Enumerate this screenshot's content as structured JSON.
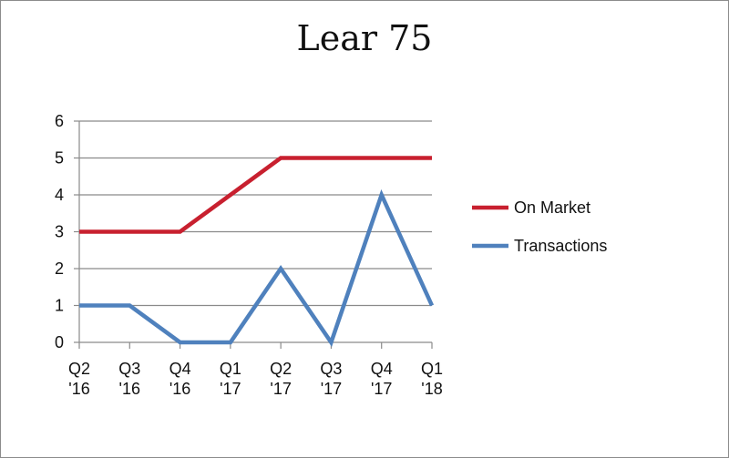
{
  "chart_data": {
    "type": "line",
    "title": "Lear 75",
    "categories": [
      [
        "Q2",
        "'16"
      ],
      [
        "Q3",
        "'16"
      ],
      [
        "Q4",
        "'16"
      ],
      [
        "Q1",
        "'17"
      ],
      [
        "Q2",
        "'17"
      ],
      [
        "Q3",
        "'17"
      ],
      [
        "Q4",
        "'17"
      ],
      [
        "Q1",
        "'18"
      ]
    ],
    "series": [
      {
        "name": "On Market",
        "color": "#c8202f",
        "values": [
          3,
          3,
          3,
          4,
          5,
          5,
          5,
          5
        ]
      },
      {
        "name": "Transactions",
        "color": "#4f81bd",
        "values": [
          1,
          1,
          0,
          0,
          2,
          0,
          4,
          1
        ]
      }
    ],
    "ylim": [
      0,
      6
    ],
    "yticks": [
      0,
      1,
      2,
      3,
      4,
      5,
      6
    ],
    "grid": true,
    "legend_position": "right"
  }
}
